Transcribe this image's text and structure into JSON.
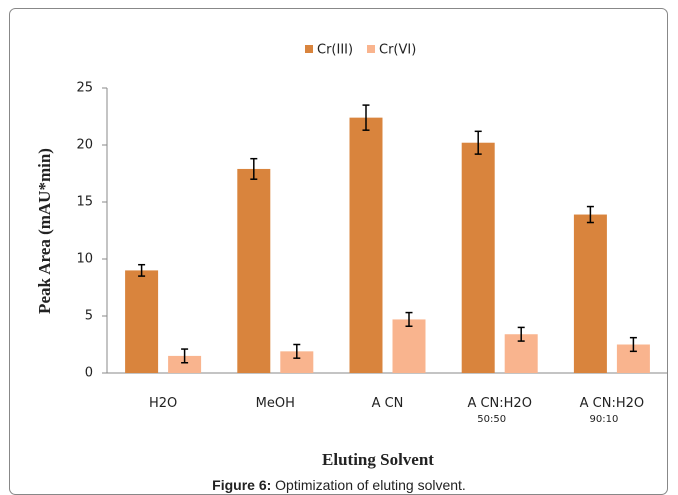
{
  "chart_data": {
    "type": "bar",
    "categories": [
      "H2O",
      "MeOH",
      "A CN",
      "A CN:H2O\n50:50",
      "A CN:H2O\n90:10"
    ],
    "series": [
      {
        "name": "Cr(III)",
        "color": "#d9843d",
        "values": [
          9.0,
          17.9,
          22.4,
          20.2,
          13.9
        ],
        "errors": [
          0.5,
          0.9,
          1.1,
          1.0,
          0.7
        ]
      },
      {
        "name": "Cr(VI)",
        "color": "#f9b48e",
        "values": [
          1.5,
          1.9,
          4.7,
          3.4,
          2.5
        ],
        "errors": [
          0.6,
          0.6,
          0.6,
          0.6,
          0.6
        ]
      }
    ],
    "ylim": [
      0,
      25
    ],
    "yticks": [
      0,
      5,
      10,
      15,
      20,
      25
    ],
    "ylabel": "Peak Area (mAU*min)",
    "xlabel": "Eluting Solvent",
    "legend": "top"
  },
  "caption": {
    "label": "Figure 6:",
    "text": "Optimization of eluting solvent."
  }
}
